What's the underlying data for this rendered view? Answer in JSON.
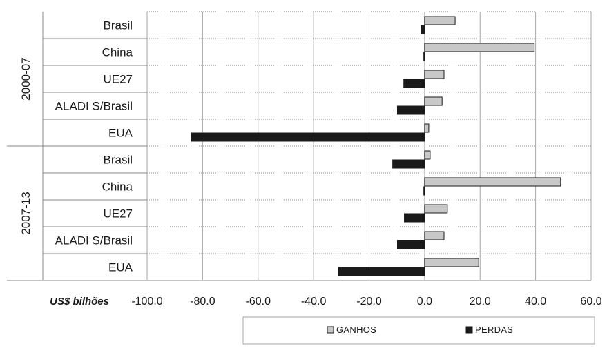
{
  "chart_data": {
    "type": "bar",
    "orientation": "horizontal",
    "groups": [
      {
        "label": "2000-07",
        "categories": [
          "Brasil",
          "China",
          "UE27",
          "ALADI S/Brasil",
          "EUA"
        ]
      },
      {
        "label": "2007-13",
        "categories": [
          "Brasil",
          "China",
          "UE27",
          "ALADI S/Brasil",
          "EUA"
        ]
      }
    ],
    "series": [
      {
        "name": "GANHOS",
        "color": "#c8c8c8",
        "values": [
          11.0,
          39.5,
          7.0,
          6.3,
          1.5,
          2.0,
          49.0,
          8.2,
          7.0,
          19.5
        ]
      },
      {
        "name": "PERDAS",
        "color": "#1a1a1a",
        "values": [
          -1.3,
          -0.3,
          -7.5,
          -9.8,
          -84.0,
          -11.5,
          -0.3,
          -7.3,
          -9.8,
          -31.0
        ]
      }
    ],
    "xlim": [
      -100,
      60
    ],
    "xticks": [
      -100,
      -80,
      -60,
      -40,
      -20,
      0,
      20,
      40,
      60
    ],
    "xtick_labels": [
      "-100.0",
      "-80.0",
      "-60.0",
      "-40.0",
      "-20.0",
      "0.0",
      "20.0",
      "40.0",
      "60.0"
    ],
    "xlabel": "US$ bilhões",
    "grid": true,
    "legend_position": "bottom"
  }
}
